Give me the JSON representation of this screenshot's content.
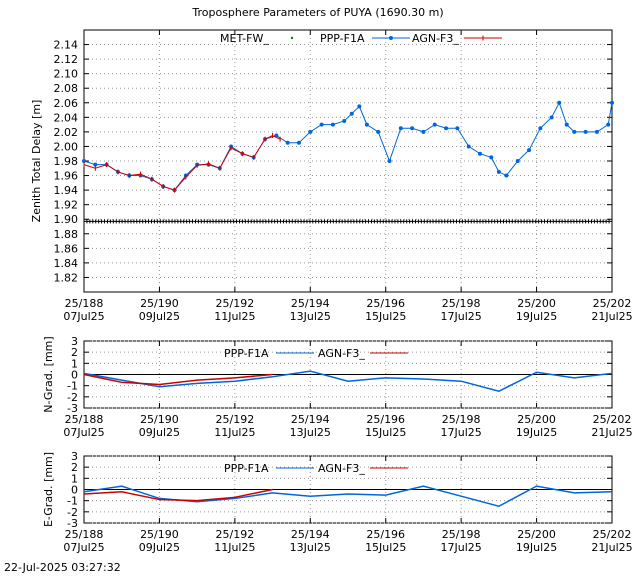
{
  "chart_data": [
    {
      "type": "line",
      "title": "Troposphere Parameters of PUYA (1690.30 m)",
      "ylabel": "Zenith Total Delay [m]",
      "xlabel": "",
      "ylim": [
        1.8,
        2.16
      ],
      "grid": true,
      "legend_placement": "top",
      "x_ticks": [
        {
          "top": "25/188",
          "bottom": "07Jul25",
          "doy": 188
        },
        {
          "top": "25/190",
          "bottom": "09Jul25",
          "doy": 190
        },
        {
          "top": "25/192",
          "bottom": "11Jul25",
          "doy": 192
        },
        {
          "top": "25/194",
          "bottom": "13Jul25",
          "doy": 194
        },
        {
          "top": "25/196",
          "bottom": "15Jul25",
          "doy": 196
        },
        {
          "top": "25/198",
          "bottom": "17Jul25",
          "doy": 198
        },
        {
          "top": "25/200",
          "bottom": "19Jul25",
          "doy": 200
        },
        {
          "top": "25/202",
          "bottom": "21Jul25",
          "doy": 202
        }
      ],
      "y_ticks": [
        "1.82",
        "1.84",
        "1.86",
        "1.88",
        "1.90",
        "1.92",
        "1.94",
        "1.96",
        "1.98",
        "2.00",
        "2.02",
        "2.04",
        "2.06",
        "2.08",
        "2.10",
        "2.12",
        "2.14"
      ],
      "series": [
        {
          "name": "MET-FW_",
          "color": "#008000",
          "x": [
            188,
            202
          ],
          "y": [
            1.897,
            1.897
          ]
        },
        {
          "name": "PPP-F1A",
          "color": "#0066dd",
          "x": [
            188.0,
            188.3,
            188.6,
            188.9,
            189.2,
            189.5,
            189.8,
            190.1,
            190.4,
            190.7,
            191.0,
            191.3,
            191.6,
            191.9,
            192.2,
            192.5,
            192.8,
            193.1,
            193.4,
            193.7,
            194.0,
            194.3,
            194.6,
            194.9,
            195.1,
            195.3,
            195.5,
            195.8,
            196.1,
            196.4,
            196.7,
            197.0,
            197.3,
            197.6,
            197.9,
            198.2,
            198.5,
            198.8,
            199.0,
            199.2,
            199.5,
            199.8,
            200.1,
            200.4,
            200.6,
            200.8,
            201.0,
            201.3,
            201.6,
            201.9,
            202.0
          ],
          "y": [
            1.98,
            1.975,
            1.975,
            1.965,
            1.96,
            1.96,
            1.955,
            1.945,
            1.94,
            1.96,
            1.975,
            1.975,
            1.97,
            2.0,
            1.99,
            1.985,
            2.01,
            2.015,
            2.005,
            2.005,
            2.02,
            2.03,
            2.03,
            2.035,
            2.045,
            2.055,
            2.03,
            2.02,
            1.98,
            2.025,
            2.025,
            2.02,
            2.03,
            2.025,
            2.025,
            2.0,
            1.99,
            1.985,
            1.965,
            1.96,
            1.98,
            1.995,
            2.025,
            2.04,
            2.06,
            2.03,
            2.02,
            2.02,
            2.02,
            2.03,
            2.06
          ]
        },
        {
          "name": "AGN-F3_",
          "color": "#cc0000",
          "x": [
            188.0,
            188.3,
            188.6,
            188.9,
            189.2,
            189.5,
            189.8,
            190.1,
            190.4,
            190.7,
            191.0,
            191.3,
            191.6,
            191.9,
            192.2,
            192.5,
            192.8,
            193.0,
            193.2
          ],
          "y": [
            1.975,
            1.97,
            1.975,
            1.965,
            1.96,
            1.962,
            1.955,
            1.945,
            1.94,
            1.958,
            1.974,
            1.976,
            1.97,
            1.998,
            1.99,
            1.985,
            2.01,
            2.015,
            2.01
          ]
        }
      ]
    },
    {
      "type": "line",
      "title": "",
      "ylabel": "N-Grad. [mm]",
      "ylim": [
        -3,
        3
      ],
      "y_ticks": [
        "3",
        "2",
        "1",
        "0",
        "-1",
        "-2",
        "-3"
      ],
      "grid": true,
      "legend_placement": "top",
      "series": [
        {
          "name": "PPP-F1A",
          "color": "#0066dd",
          "x": [
            188,
            189,
            190,
            191,
            192,
            193,
            194,
            195,
            196,
            197,
            198,
            199,
            200,
            201,
            202
          ],
          "y": [
            0.1,
            -0.5,
            -1.1,
            -0.8,
            -0.6,
            -0.2,
            0.3,
            -0.6,
            -0.3,
            -0.4,
            -0.6,
            -1.5,
            0.2,
            -0.3,
            0.1
          ]
        },
        {
          "name": "AGN-F3_",
          "color": "#cc0000",
          "x": [
            188,
            189,
            190,
            191,
            192,
            193
          ],
          "y": [
            0.0,
            -0.7,
            -0.9,
            -0.5,
            -0.3,
            0.0
          ]
        }
      ]
    },
    {
      "type": "line",
      "title": "",
      "ylabel": "E-Grad. [mm]",
      "ylim": [
        -3,
        3
      ],
      "y_ticks": [
        "3",
        "2",
        "1",
        "0",
        "-1",
        "-2",
        "-3"
      ],
      "grid": true,
      "legend_placement": "top",
      "series": [
        {
          "name": "PPP-F1A",
          "color": "#0066dd",
          "x": [
            188,
            189,
            190,
            191,
            192,
            193,
            194,
            195,
            196,
            197,
            198,
            199,
            200,
            201,
            202
          ],
          "y": [
            -0.2,
            0.3,
            -0.8,
            -1.1,
            -0.8,
            -0.3,
            -0.6,
            -0.4,
            -0.5,
            0.3,
            -0.6,
            -1.5,
            0.3,
            -0.3,
            -0.2
          ]
        },
        {
          "name": "AGN-F3_",
          "color": "#cc0000",
          "x": [
            188,
            189,
            190,
            191,
            192,
            193
          ],
          "y": [
            -0.4,
            -0.2,
            -0.9,
            -1.0,
            -0.7,
            0.0
          ]
        }
      ]
    }
  ],
  "timestamp": "22-Jul-2025 03:27:32"
}
